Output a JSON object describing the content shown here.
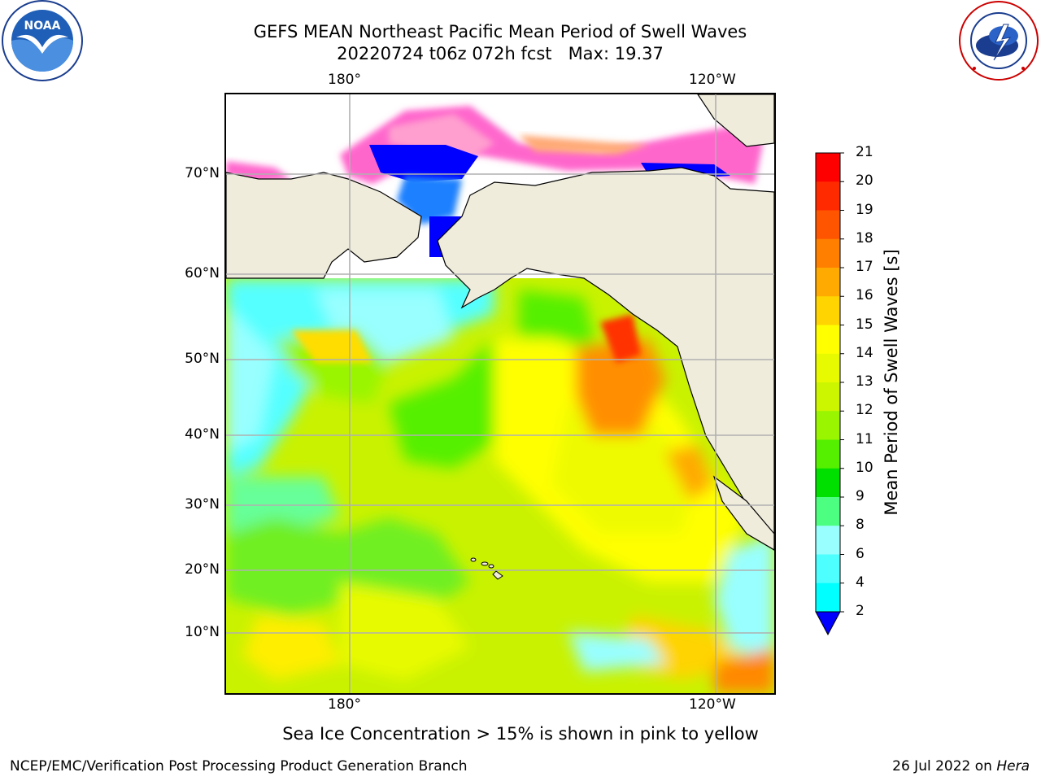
{
  "header": {
    "title_line1": "GEFS MEAN Northeast Pacific Mean Period of Swell Waves",
    "title_line2": "20220724 t06z 072h fcst   Max: 19.37"
  },
  "logos": {
    "left": {
      "name": "noara-logo",
      "text": "NOAA"
    },
    "right": {
      "name": "nws-logo"
    }
  },
  "map": {
    "lon_labels_top": [
      "180°",
      "120°W"
    ],
    "lon_labels_bottom": [
      "180°",
      "120°W"
    ],
    "lat_labels": [
      "70°N",
      "60°N",
      "50°N",
      "40°N",
      "30°N",
      "20°N",
      "10°N"
    ],
    "land_color": "#efecdc",
    "grid_color": "#b0b0b0"
  },
  "colorbar": {
    "label": "Mean Period of Swell Waves [s]",
    "ticks": [
      "21",
      "20",
      "19",
      "18",
      "17",
      "16",
      "15",
      "14",
      "13",
      "12",
      "11",
      "10",
      "9",
      "8",
      "6",
      "4",
      "2"
    ],
    "colors_top_to_bottom": [
      "#ff0000",
      "#ff2a00",
      "#ff5500",
      "#ff7f00",
      "#ffaa00",
      "#ffd400",
      "#ffff00",
      "#e8fa00",
      "#ccf500",
      "#9af500",
      "#55f000",
      "#00e000",
      "#4dff80",
      "#99ffff",
      "#4dffff",
      "#00ffff",
      "#00aaff",
      "#0080ff"
    ],
    "under_color": "#0000ff"
  },
  "note": "Sea Ice Concentration > 15% is shown in pink to yellow",
  "footer": {
    "left": "NCEP/EMC/Verification Post Processing Product Generation Branch",
    "right_prefix": "26 Jul 2022 on ",
    "right_italic": "Hera"
  }
}
